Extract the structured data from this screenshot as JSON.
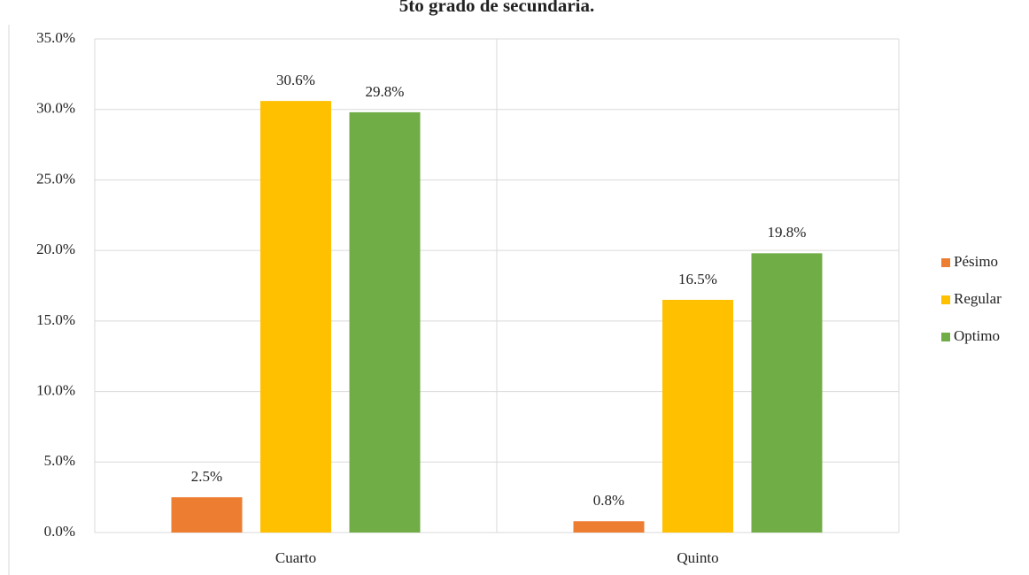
{
  "chart_data": {
    "type": "bar",
    "title": "5to grado de secundaria.",
    "categories": [
      "Cuarto",
      "Quinto"
    ],
    "series": [
      {
        "name": "Pésimo",
        "color": "#ed7d31",
        "values": [
          2.5,
          0.8
        ],
        "value_labels": [
          "2.5%",
          "0.8%"
        ]
      },
      {
        "name": "Regular",
        "color": "#ffc000",
        "values": [
          30.6,
          16.5
        ],
        "value_labels": [
          "30.6%",
          "16.5%"
        ]
      },
      {
        "name": "Optimo",
        "color": "#70ad47",
        "values": [
          29.8,
          19.8
        ],
        "value_labels": [
          "29.8%",
          "19.8%"
        ]
      }
    ],
    "ylim": [
      0,
      35
    ],
    "yticks": [
      {
        "value": 0,
        "label": "0.0%"
      },
      {
        "value": 5,
        "label": "5.0%"
      },
      {
        "value": 10,
        "label": "10.0%"
      },
      {
        "value": 15,
        "label": "15.0%"
      },
      {
        "value": 20,
        "label": "20.0%"
      },
      {
        "value": 25,
        "label": "25.0%"
      },
      {
        "value": 30,
        "label": "30.0%"
      },
      {
        "value": 35,
        "label": "35.0%"
      }
    ],
    "grid": true,
    "legend": "right"
  }
}
